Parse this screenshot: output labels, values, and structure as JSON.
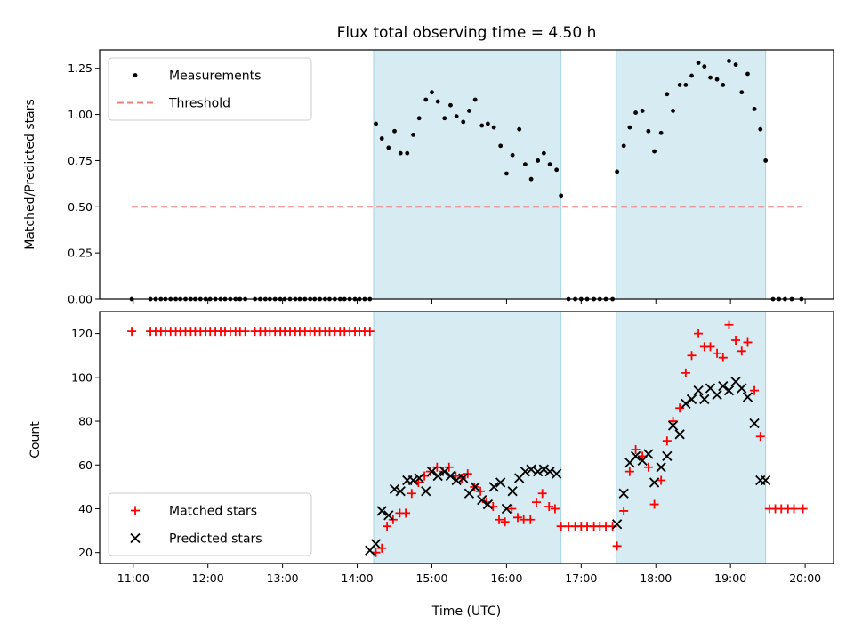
{
  "chart_data": [
    {
      "type": "scatter",
      "title": "Flux total observing time = 4.50 h",
      "xlabel": "",
      "ylabel": "Matched/Predicted stars",
      "xlim": [
        10.55,
        20.38
      ],
      "ylim": [
        0,
        1.35
      ],
      "yticks": [
        0,
        0.25,
        0.5,
        0.75,
        1.0,
        1.25
      ],
      "ytick_labels": [
        "0.00",
        "0.25",
        "0.50",
        "0.75",
        "1.00",
        "1.25"
      ],
      "xticks": [
        11,
        12,
        13,
        14,
        15,
        16,
        17,
        18,
        19,
        20
      ],
      "grid": false,
      "legend": "upper left",
      "shaded_intervals": [
        [
          14.22,
          16.73
        ],
        [
          17.47,
          19.47
        ]
      ],
      "series": [
        {
          "name": "Measurements",
          "marker": "dot",
          "color": "#000000",
          "x": [
            10.98,
            11.23,
            11.3,
            11.37,
            11.43,
            11.5,
            11.57,
            11.63,
            11.7,
            11.77,
            11.83,
            11.9,
            11.97,
            12.03,
            12.1,
            12.17,
            12.23,
            12.3,
            12.37,
            12.43,
            12.5,
            12.63,
            12.7,
            12.77,
            12.83,
            12.9,
            12.97,
            13.03,
            13.1,
            13.17,
            13.23,
            13.3,
            13.37,
            13.43,
            13.5,
            13.57,
            13.63,
            13.7,
            13.77,
            13.83,
            13.9,
            13.97,
            14.03,
            14.1,
            14.17,
            14.25,
            14.33,
            14.42,
            14.5,
            14.58,
            14.67,
            14.75,
            14.83,
            14.92,
            15.0,
            15.08,
            15.17,
            15.25,
            15.33,
            15.42,
            15.5,
            15.58,
            15.67,
            15.75,
            15.83,
            15.92,
            16.0,
            16.08,
            16.17,
            16.25,
            16.33,
            16.42,
            16.5,
            16.58,
            16.67,
            16.73,
            16.83,
            16.92,
            17.0,
            17.08,
            17.17,
            17.25,
            17.33,
            17.42,
            17.48,
            17.57,
            17.65,
            17.73,
            17.82,
            17.9,
            17.98,
            18.07,
            18.15,
            18.23,
            18.32,
            18.4,
            18.48,
            18.57,
            18.65,
            18.73,
            18.82,
            18.9,
            18.98,
            19.07,
            19.15,
            19.23,
            19.32,
            19.4,
            19.47,
            19.57,
            19.65,
            19.73,
            19.82,
            19.95
          ],
          "y": [
            0,
            0,
            0,
            0,
            0,
            0,
            0,
            0,
            0,
            0,
            0,
            0,
            0,
            0,
            0,
            0,
            0,
            0,
            0,
            0,
            0,
            0,
            0,
            0,
            0,
            0,
            0,
            0,
            0,
            0,
            0,
            0,
            0,
            0,
            0,
            0,
            0,
            0,
            0,
            0,
            0,
            0,
            0,
            0,
            0,
            0.95,
            0.87,
            0.82,
            0.91,
            0.79,
            0.79,
            0.89,
            0.98,
            1.08,
            1.12,
            1.07,
            0.98,
            1.05,
            0.99,
            0.96,
            1.02,
            1.08,
            0.94,
            0.95,
            0.93,
            0.83,
            0.68,
            0.78,
            0.92,
            0.73,
            0.65,
            0.75,
            0.79,
            0.73,
            0.7,
            0.56,
            0,
            0,
            0,
            0,
            0,
            0,
            0,
            0,
            0.69,
            0.83,
            0.93,
            1.01,
            1.02,
            0.91,
            0.8,
            0.9,
            1.11,
            1.02,
            1.16,
            1.16,
            1.21,
            1.28,
            1.26,
            1.2,
            1.19,
            1.16,
            1.29,
            1.27,
            1.12,
            1.22,
            1.03,
            0.92,
            0.75,
            0,
            0,
            0,
            0,
            0
          ]
        },
        {
          "name": "Threshold",
          "marker": "dashed-line",
          "color": "#f08080",
          "x": [
            10.98,
            19.95
          ],
          "y": [
            0.5,
            0.5
          ]
        }
      ]
    },
    {
      "type": "scatter",
      "title": "",
      "xlabel": "Time (UTC)",
      "ylabel": "Count",
      "xlim": [
        10.55,
        20.38
      ],
      "ylim": [
        15,
        130
      ],
      "yticks": [
        20,
        40,
        60,
        80,
        100,
        120
      ],
      "ytick_labels": [
        "20",
        "40",
        "60",
        "80",
        "100",
        "120"
      ],
      "xticks": [
        11,
        12,
        13,
        14,
        15,
        16,
        17,
        18,
        19,
        20
      ],
      "xtick_labels": [
        "11:00",
        "12:00",
        "13:00",
        "14:00",
        "15:00",
        "16:00",
        "17:00",
        "18:00",
        "19:00",
        "20:00"
      ],
      "grid": false,
      "legend": "lower left",
      "shaded_intervals": [
        [
          14.22,
          16.73
        ],
        [
          17.47,
          19.47
        ]
      ],
      "series": [
        {
          "name": "Matched stars",
          "marker": "plus",
          "color": "#ff0000",
          "x": [
            10.98,
            11.23,
            11.3,
            11.37,
            11.43,
            11.5,
            11.57,
            11.63,
            11.7,
            11.77,
            11.83,
            11.9,
            11.97,
            12.03,
            12.1,
            12.17,
            12.23,
            12.3,
            12.37,
            12.43,
            12.5,
            12.63,
            12.7,
            12.77,
            12.83,
            12.9,
            12.97,
            13.03,
            13.1,
            13.17,
            13.23,
            13.3,
            13.37,
            13.43,
            13.5,
            13.57,
            13.63,
            13.7,
            13.77,
            13.83,
            13.9,
            13.97,
            14.03,
            14.1,
            14.17,
            14.25,
            14.33,
            14.4,
            14.48,
            14.57,
            14.65,
            14.73,
            14.82,
            14.9,
            14.98,
            15.07,
            15.15,
            15.23,
            15.32,
            15.4,
            15.48,
            15.57,
            15.65,
            15.73,
            15.82,
            15.9,
            15.98,
            16.07,
            16.15,
            16.23,
            16.32,
            16.4,
            16.48,
            16.57,
            16.65,
            16.73,
            16.83,
            16.92,
            17.0,
            17.08,
            17.17,
            17.25,
            17.33,
            17.42,
            17.48,
            17.57,
            17.65,
            17.73,
            17.82,
            17.9,
            17.98,
            18.07,
            18.15,
            18.23,
            18.32,
            18.4,
            18.48,
            18.57,
            18.65,
            18.73,
            18.82,
            18.9,
            18.98,
            19.07,
            19.15,
            19.23,
            19.32,
            19.4,
            19.52,
            19.6,
            19.68,
            19.77,
            19.85,
            19.97
          ],
          "y": [
            121,
            121,
            121,
            121,
            121,
            121,
            121,
            121,
            121,
            121,
            121,
            121,
            121,
            121,
            121,
            121,
            121,
            121,
            121,
            121,
            121,
            121,
            121,
            121,
            121,
            121,
            121,
            121,
            121,
            121,
            121,
            121,
            121,
            121,
            121,
            121,
            121,
            121,
            121,
            121,
            121,
            121,
            121,
            121,
            121,
            20,
            22,
            32,
            35,
            38,
            38,
            47,
            52,
            55,
            57,
            59,
            57,
            59,
            55,
            54,
            56,
            50,
            48,
            43,
            41,
            35,
            34,
            40,
            36,
            35,
            35,
            43,
            47,
            41,
            40,
            32,
            32,
            32,
            32,
            32,
            32,
            32,
            32,
            32,
            23,
            39,
            57,
            67,
            64,
            59,
            42,
            53,
            71,
            80,
            86,
            102,
            110,
            120,
            114,
            114,
            111,
            109,
            124,
            117,
            112,
            116,
            94,
            73,
            40,
            40,
            40,
            40,
            40,
            40
          ]
        },
        {
          "name": "Predicted stars",
          "marker": "cross",
          "color": "#000000",
          "x": [
            14.17,
            14.25,
            14.33,
            14.42,
            14.5,
            14.58,
            14.67,
            14.75,
            14.83,
            14.92,
            15.0,
            15.08,
            15.17,
            15.25,
            15.33,
            15.42,
            15.5,
            15.58,
            15.67,
            15.75,
            15.83,
            15.92,
            16.0,
            16.08,
            16.17,
            16.25,
            16.33,
            16.42,
            16.5,
            16.58,
            16.67,
            17.48,
            17.57,
            17.65,
            17.73,
            17.82,
            17.9,
            17.98,
            18.07,
            18.15,
            18.23,
            18.32,
            18.4,
            18.48,
            18.57,
            18.65,
            18.73,
            18.82,
            18.9,
            18.98,
            19.07,
            19.15,
            19.23,
            19.32,
            19.4,
            19.47
          ],
          "y": [
            21,
            24,
            39,
            37,
            49,
            48,
            53,
            53,
            54,
            48,
            57,
            55,
            57,
            55,
            53,
            54,
            47,
            50,
            44,
            42,
            50,
            52,
            40,
            48,
            54,
            57,
            58,
            57,
            58,
            57,
            56,
            33,
            47,
            61,
            64,
            62,
            65,
            52,
            59,
            64,
            78,
            74,
            88,
            90,
            94,
            90,
            95,
            92,
            96,
            94,
            98,
            95,
            91,
            79,
            53,
            53
          ]
        }
      ]
    }
  ]
}
